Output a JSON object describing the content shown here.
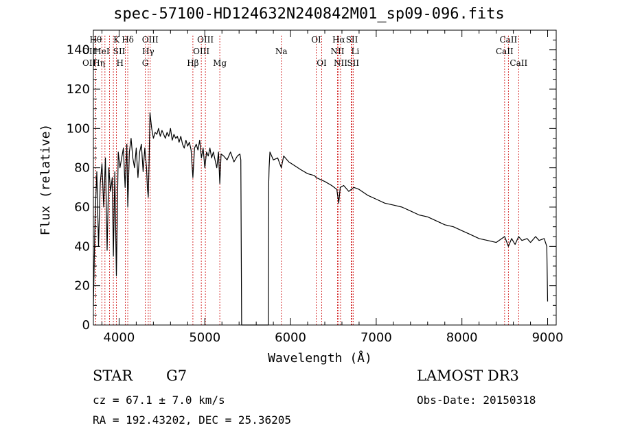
{
  "chart_data": {
    "type": "line",
    "title": "spec-57100-HD124632N240842M01_sp09-096.fits",
    "xlabel": "Wavelength (Å)",
    "ylabel": "Flux (relative)",
    "xlim": [
      3700,
      9100
    ],
    "ylim": [
      0,
      150
    ],
    "xticks": [
      4000,
      5000,
      6000,
      7000,
      8000,
      9000
    ],
    "yticks": [
      0,
      20,
      40,
      60,
      80,
      100,
      120,
      140
    ],
    "series": [
      {
        "name": "flux",
        "x": [
          3700,
          3720,
          3740,
          3760,
          3780,
          3800,
          3820,
          3840,
          3860,
          3880,
          3900,
          3920,
          3933,
          3950,
          3968,
          3990,
          4010,
          4030,
          4050,
          4070,
          4090,
          4101,
          4120,
          4140,
          4160,
          4180,
          4200,
          4220,
          4240,
          4260,
          4280,
          4300,
          4320,
          4330,
          4340,
          4350,
          4360,
          4380,
          4400,
          4420,
          4440,
          4460,
          4480,
          4500,
          4520,
          4540,
          4560,
          4580,
          4600,
          4620,
          4640,
          4660,
          4680,
          4700,
          4720,
          4740,
          4760,
          4780,
          4800,
          4820,
          4840,
          4861,
          4880,
          4900,
          4920,
          4940,
          4960,
          4980,
          5000,
          5020,
          5040,
          5060,
          5080,
          5100,
          5120,
          5140,
          5160,
          5175,
          5190,
          5220,
          5260,
          5300,
          5340,
          5380,
          5410,
          5420,
          5430,
          5740,
          5745,
          5750,
          5760,
          5780,
          5800,
          5850,
          5893,
          5920,
          5980,
          6050,
          6120,
          6200,
          6280,
          6300,
          6350,
          6400,
          6480,
          6540,
          6563,
          6580,
          6620,
          6680,
          6740,
          6800,
          6900,
          7000,
          7100,
          7200,
          7300,
          7400,
          7500,
          7600,
          7700,
          7800,
          7900,
          8000,
          8100,
          8200,
          8300,
          8400,
          8498,
          8542,
          8580,
          8620,
          8662,
          8700,
          8760,
          8800,
          8860,
          8900,
          8960,
          8990,
          9000
        ],
        "values": [
          10,
          55,
          78,
          40,
          72,
          82,
          60,
          85,
          38,
          80,
          68,
          75,
          35,
          78,
          25,
          88,
          80,
          85,
          90,
          70,
          92,
          60,
          88,
          95,
          85,
          80,
          90,
          75,
          88,
          92,
          78,
          90,
          80,
          70,
          65,
          82,
          108,
          100,
          95,
          98,
          97,
          100,
          96,
          99,
          97,
          95,
          98,
          96,
          100,
          94,
          97,
          95,
          96,
          93,
          96,
          92,
          90,
          94,
          91,
          93,
          89,
          75,
          90,
          92,
          89,
          94,
          85,
          90,
          80,
          88,
          86,
          90,
          85,
          88,
          84,
          80,
          88,
          72,
          87,
          86,
          84,
          88,
          83,
          86,
          87,
          84,
          0,
          0,
          70,
          80,
          88,
          86,
          84,
          85,
          80,
          86,
          83,
          81,
          79,
          77,
          76,
          75,
          74,
          73,
          71,
          69,
          62,
          70,
          71,
          68,
          70,
          69,
          66,
          64,
          62,
          61,
          60,
          58,
          56,
          55,
          53,
          51,
          50,
          48,
          46,
          44,
          43,
          42,
          45,
          40,
          44,
          41,
          45,
          43,
          44,
          42,
          45,
          43,
          44,
          40,
          12
        ]
      }
    ],
    "line_markers": [
      {
        "label": "Hθ",
        "wavelength": 3798,
        "row": 1,
        "side": "left"
      },
      {
        "label": "OII",
        "wavelength": 3727,
        "row": 2,
        "side": "left"
      },
      {
        "label": "OII",
        "wavelength": 3727,
        "row": 3,
        "side": "left"
      },
      {
        "label": "Hη",
        "wavelength": 3835,
        "row": 3,
        "side": "left"
      },
      {
        "label": "HeI",
        "wavelength": 3889,
        "row": 2,
        "side": "left"
      },
      {
        "label": "K",
        "wavelength": 3933,
        "row": 1,
        "side": "right"
      },
      {
        "label": "SII",
        "wavelength": 4072,
        "row": 2,
        "side": "left"
      },
      {
        "label": "H",
        "wavelength": 3968,
        "row": 3,
        "side": "right"
      },
      {
        "label": "Hδ",
        "wavelength": 4101,
        "row": 1,
        "side": "center"
      },
      {
        "label": "OIII",
        "wavelength": 4363,
        "row": 1,
        "side": "center"
      },
      {
        "label": "Hγ",
        "wavelength": 4340,
        "row": 2,
        "side": "center"
      },
      {
        "label": "G",
        "wavelength": 4305,
        "row": 3,
        "side": "center"
      },
      {
        "label": "Hβ",
        "wavelength": 4861,
        "row": 3,
        "side": "center"
      },
      {
        "label": "OIII",
        "wavelength": 5007,
        "row": 1,
        "side": "center"
      },
      {
        "label": "OIII",
        "wavelength": 4959,
        "row": 2,
        "side": "center"
      },
      {
        "label": "Mg",
        "wavelength": 5175,
        "row": 3,
        "side": "center"
      },
      {
        "label": "Na",
        "wavelength": 5893,
        "row": 2,
        "side": "center"
      },
      {
        "label": "OI",
        "wavelength": 6300,
        "row": 1,
        "side": "center"
      },
      {
        "label": "OI",
        "wavelength": 6364,
        "row": 3,
        "side": "center"
      },
      {
        "label": "Hα",
        "wavelength": 6563,
        "row": 1,
        "side": "center"
      },
      {
        "label": "NII",
        "wavelength": 6548,
        "row": 2,
        "side": "center"
      },
      {
        "label": "NII",
        "wavelength": 6584,
        "row": 3,
        "side": "center"
      },
      {
        "label": "SII",
        "wavelength": 6717,
        "row": 1,
        "side": "center"
      },
      {
        "label": "Li",
        "wavelength": 6708,
        "row": 2,
        "side": "right"
      },
      {
        "label": "SII",
        "wavelength": 6731,
        "row": 3,
        "side": "center"
      },
      {
        "label": "CaII",
        "wavelength": 8542,
        "row": 1,
        "side": "center"
      },
      {
        "label": "CaII",
        "wavelength": 8498,
        "row": 2,
        "side": "center"
      },
      {
        "label": "CaII",
        "wavelength": 8662,
        "row": 3,
        "side": "center"
      }
    ]
  },
  "info": {
    "object_type": "STAR",
    "spectral_class": "G7",
    "survey": "LAMOST DR3",
    "redshift": "cz = 67.1 ± 7.0 km/s",
    "obs_date": "Obs-Date: 20150318",
    "coordinates": "RA = 192.43202, DEC =  25.36205"
  },
  "colors": {
    "marker_line": "#cc0000",
    "spectrum": "#000000",
    "axes": "#000000"
  }
}
